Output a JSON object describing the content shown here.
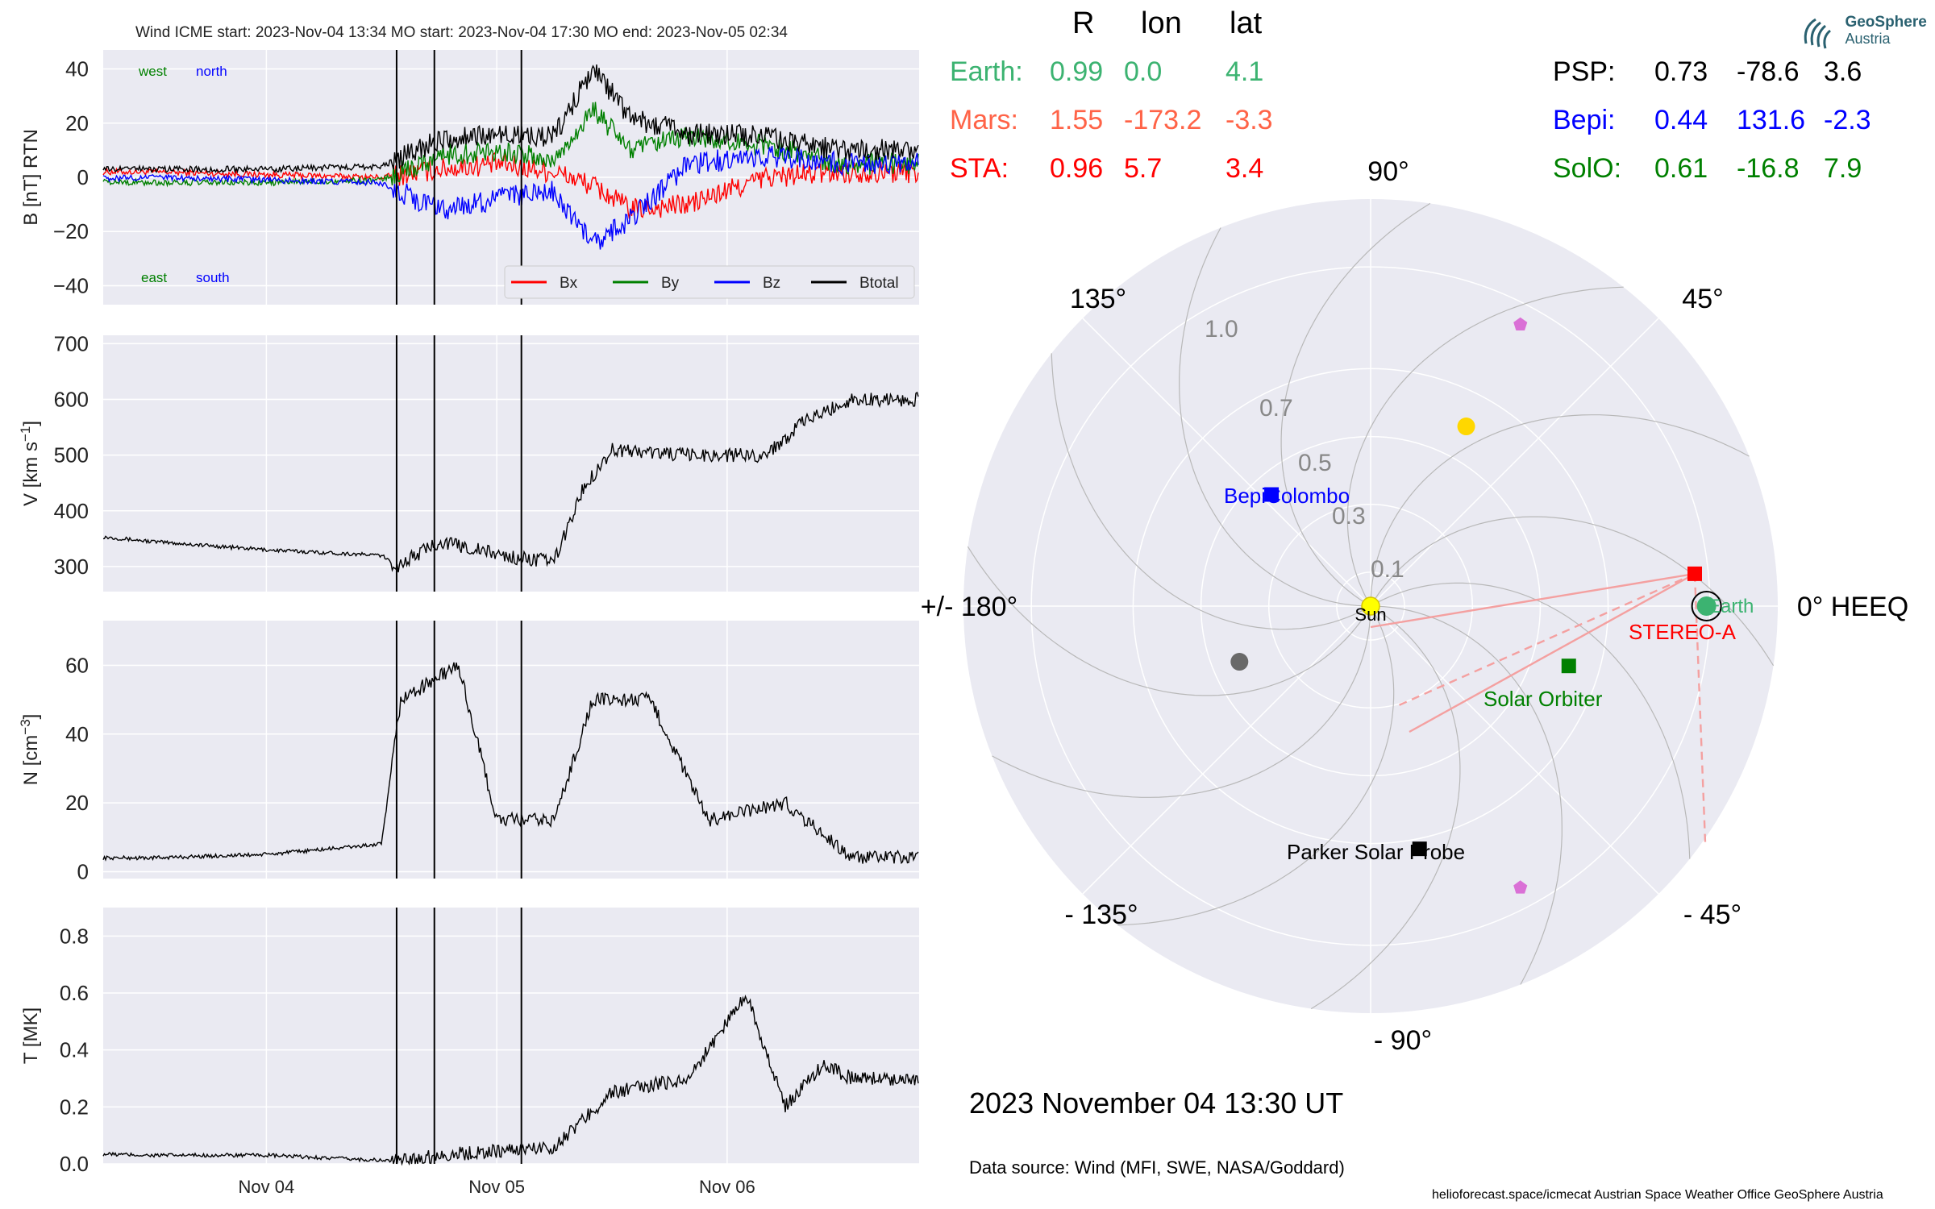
{
  "header": {
    "title": "Wind    ICME start: 2023-Nov-04 13:34   MO start: 2023-Nov-04 17:30   MO end: 2023-Nov-05 02:34"
  },
  "colors": {
    "panel_bg": "#eaeaf2",
    "grid": "#ffffff",
    "bx": "#ff0000",
    "by": "#008000",
    "bz": "#0000ff",
    "btotal": "#000000",
    "earth": "#3cb371",
    "mars": "#ff6347",
    "sta": "#ff0000",
    "psp": "#000000",
    "bepi": "#0000ff",
    "solo": "#008000"
  },
  "position_table": {
    "headers": [
      "R",
      "lon",
      "lat"
    ],
    "left_rows": [
      {
        "name": "Earth:",
        "r": "0.99",
        "lon": "0.0",
        "lat": "4.1",
        "color": "#3cb371"
      },
      {
        "name": "Mars:",
        "r": "1.55",
        "lon": "-173.2",
        "lat": "-3.3",
        "color": "#ff6347"
      },
      {
        "name": "STA:",
        "r": "0.96",
        "lon": "5.7",
        "lat": "3.4",
        "color": "#ff0000"
      }
    ],
    "right_rows": [
      {
        "name": "PSP:",
        "r": "0.73",
        "lon": "-78.6",
        "lat": "3.6",
        "color": "#000000"
      },
      {
        "name": "Bepi:",
        "r": "0.44",
        "lon": "131.6",
        "lat": "-2.3",
        "color": "#0000ff"
      },
      {
        "name": "SolO:",
        "r": "0.61",
        "lon": "-16.8",
        "lat": "7.9",
        "color": "#008000"
      }
    ]
  },
  "logo": {
    "line1": "GeoSphere",
    "line2": "Austria"
  },
  "polar": {
    "angle_labels": [
      "90°",
      "45°",
      "0° HEEQ",
      "- 45°",
      "- 90°",
      "- 135°",
      "+/- 180°",
      "135°"
    ],
    "radial_labels": [
      "0.1",
      "0.3",
      "0.5",
      "0.7",
      "1.0"
    ],
    "body_labels": {
      "sun": "Sun",
      "earth": "Earth",
      "stereo": "STEREO-A",
      "bepi": "BepiColombo",
      "solo": "Solar Orbiter",
      "psp": "Parker Solar Probe"
    }
  },
  "date_label": "2023 November 04  13:30 UT",
  "data_source": "Data source: Wind (MFI, SWE, NASA/Goddard)",
  "footer": "helioforecast.space/icmecat   Austrian Space Weather Office   GeoSphere Austria",
  "chart_data": [
    {
      "type": "line",
      "ylabel": "B [nT] RTN",
      "ylim": [
        -47,
        47
      ],
      "yticks": [
        -40,
        -20,
        0,
        20,
        40
      ],
      "xlim_days": [
        0,
        3.54
      ],
      "xtick_labels": [
        "Nov 04",
        "Nov 05",
        "Nov 06"
      ],
      "annotations": [
        "west",
        "north",
        "east",
        "south"
      ],
      "event_lines": [
        "2023-Nov-04 13:34",
        "2023-Nov-04 17:30",
        "2023-Nov-05 02:34"
      ],
      "legend": "lower-right",
      "series": [
        {
          "name": "Bx",
          "color": "#ff0000",
          "x": [
            "2023-11-03 00:00",
            "2023-11-03 12:00",
            "2023-11-04 00:00",
            "2023-11-04 12:00",
            "2023-11-04 18:00",
            "2023-11-05 00:00",
            "2023-11-05 06:00",
            "2023-11-05 10:00",
            "2023-11-05 14:00",
            "2023-11-05 20:00",
            "2023-11-06 04:00",
            "2023-11-06 12:00"
          ],
          "values": [
            2,
            2,
            1,
            0,
            3,
            5,
            2,
            -3,
            -12,
            -10,
            0,
            2
          ]
        },
        {
          "name": "By",
          "color": "#008000",
          "x": [
            "2023-11-03 00:00",
            "2023-11-03 12:00",
            "2023-11-04 00:00",
            "2023-11-04 12:00",
            "2023-11-04 18:00",
            "2023-11-05 00:00",
            "2023-11-05 06:00",
            "2023-11-05 10:00",
            "2023-11-05 14:00",
            "2023-11-05 20:00",
            "2023-11-06 04:00",
            "2023-11-06 12:00"
          ],
          "values": [
            -1,
            -2,
            -2,
            -1,
            8,
            10,
            6,
            25,
            10,
            15,
            12,
            5
          ]
        },
        {
          "name": "Bz",
          "color": "#0000ff",
          "x": [
            "2023-11-03 00:00",
            "2023-11-03 12:00",
            "2023-11-04 00:00",
            "2023-11-04 12:00",
            "2023-11-04 18:00",
            "2023-11-05 00:00",
            "2023-11-05 06:00",
            "2023-11-05 10:00",
            "2023-11-05 14:00",
            "2023-11-05 20:00",
            "2023-11-06 04:00",
            "2023-11-06 12:00"
          ],
          "values": [
            -1,
            0,
            -1,
            -2,
            -12,
            -8,
            -5,
            -25,
            -15,
            5,
            8,
            5
          ]
        },
        {
          "name": "Btotal",
          "color": "#000000",
          "x": [
            "2023-11-03 00:00",
            "2023-11-03 12:00",
            "2023-11-04 00:00",
            "2023-11-04 12:00",
            "2023-11-04 18:00",
            "2023-11-05 00:00",
            "2023-11-05 06:00",
            "2023-11-05 10:00",
            "2023-11-05 14:00",
            "2023-11-05 20:00",
            "2023-11-06 04:00",
            "2023-11-06 12:00"
          ],
          "values": [
            3,
            3,
            3,
            4,
            14,
            16,
            15,
            40,
            22,
            16,
            15,
            10
          ]
        }
      ]
    },
    {
      "type": "line",
      "ylabel": "V [km s^-1]",
      "ylim": [
        255,
        715
      ],
      "yticks": [
        300,
        400,
        500,
        600,
        700
      ],
      "xtick_labels": [
        "Nov 04",
        "Nov 05",
        "Nov 06"
      ],
      "series": [
        {
          "name": "",
          "color": "#000000",
          "x": [
            "2023-11-03 00:00",
            "2023-11-03 12:00",
            "2023-11-04 00:00",
            "2023-11-04 12:00",
            "2023-11-04 13:34",
            "2023-11-04 18:00",
            "2023-11-05 02:00",
            "2023-11-05 06:00",
            "2023-11-05 09:00",
            "2023-11-05 12:00",
            "2023-11-05 20:00",
            "2023-11-06 04:00",
            "2023-11-06 08:00",
            "2023-11-06 13:00"
          ],
          "values": [
            365,
            345,
            330,
            320,
            300,
            345,
            315,
            310,
            440,
            510,
            500,
            500,
            560,
            600
          ]
        }
      ]
    },
    {
      "type": "line",
      "ylabel": "N [cm^-3]",
      "ylim": [
        -2,
        73
      ],
      "yticks": [
        0,
        20,
        40,
        60
      ],
      "xtick_labels": [
        "Nov 04",
        "Nov 05",
        "Nov 06"
      ],
      "series": [
        {
          "name": "",
          "color": "#000000",
          "x": [
            "2023-11-03 00:00",
            "2023-11-03 12:00",
            "2023-11-04 00:00",
            "2023-11-04 12:00",
            "2023-11-04 14:00",
            "2023-11-04 20:00",
            "2023-11-05 00:00",
            "2023-11-05 06:00",
            "2023-11-05 10:00",
            "2023-11-05 16:00",
            "2023-11-05 22:00",
            "2023-11-06 06:00",
            "2023-11-06 13:00"
          ],
          "values": [
            4,
            4,
            5,
            8,
            50,
            60,
            15,
            15,
            50,
            50,
            15,
            20,
            4
          ]
        }
      ]
    },
    {
      "type": "line",
      "ylabel": "T [MK]",
      "ylim": [
        0,
        0.9
      ],
      "yticks": [
        0.0,
        0.2,
        0.4,
        0.6,
        0.8
      ],
      "xtick_labels": [
        "Nov 04",
        "Nov 05",
        "Nov 06"
      ],
      "series": [
        {
          "name": "",
          "color": "#000000",
          "x": [
            "2023-11-03 00:00",
            "2023-11-03 12:00",
            "2023-11-04 00:00",
            "2023-11-04 13:34",
            "2023-11-04 18:00",
            "2023-11-05 02:00",
            "2023-11-05 06:00",
            "2023-11-05 12:00",
            "2023-11-05 20:00",
            "2023-11-06 02:00",
            "2023-11-06 06:00",
            "2023-11-06 10:00",
            "2023-11-06 13:00"
          ],
          "values": [
            0.04,
            0.03,
            0.03,
            0.01,
            0.03,
            0.05,
            0.06,
            0.25,
            0.3,
            0.6,
            0.2,
            0.35,
            0.3
          ]
        }
      ]
    },
    {
      "type": "scatter",
      "title": "",
      "coords": "polar (radius AU, longitude deg HEEQ)",
      "rmax": 1.2,
      "points": [
        {
          "name": "Sun",
          "r": 0.0,
          "lon": 0.0,
          "color": "#ffff00"
        },
        {
          "name": "Earth",
          "r": 0.99,
          "lon": 0.0,
          "color": "#3cb371"
        },
        {
          "name": "STEREO-A",
          "r": 0.96,
          "lon": 5.7,
          "color": "#ff0000"
        },
        {
          "name": "BepiColombo",
          "r": 0.44,
          "lon": 131.6,
          "color": "#0000ff"
        },
        {
          "name": "Solar Orbiter",
          "r": 0.61,
          "lon": -16.8,
          "color": "#008000"
        },
        {
          "name": "Parker Solar Probe",
          "r": 0.73,
          "lon": -78.6,
          "color": "#000000"
        },
        {
          "name": "",
          "r": 0.6,
          "lon": 62,
          "color": "#ffd700"
        },
        {
          "name": "",
          "r": 0.42,
          "lon": -157,
          "color": "#696969"
        },
        {
          "name": "",
          "r": 0.94,
          "lon": 62,
          "color": "#da70d6"
        },
        {
          "name": "",
          "r": 0.94,
          "lon": -62,
          "color": "#da70d6"
        }
      ]
    }
  ]
}
